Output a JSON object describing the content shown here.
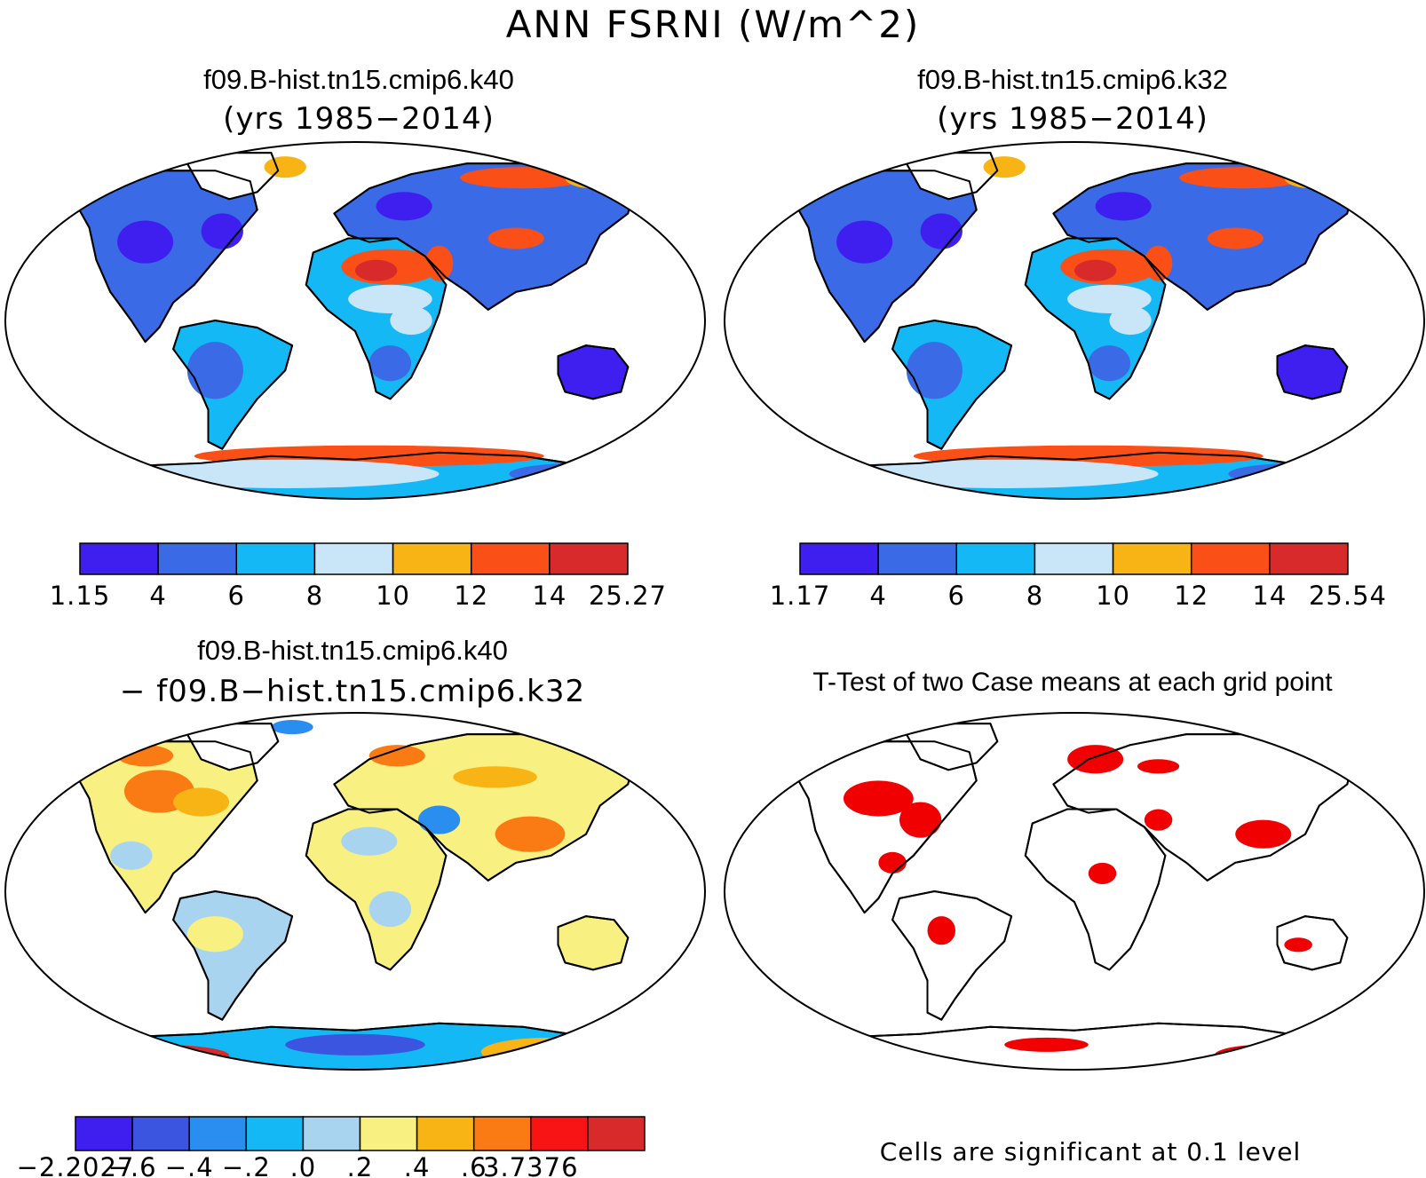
{
  "title": "ANN FSRNI (W/m^2)",
  "panels": [
    {
      "id": "case1",
      "title": "f09.B-hist.tn15.cmip6.k40",
      "subtitle": "(yrs 1985−2014)",
      "colorbar": {
        "colors": [
          "#3f1ff0",
          "#3b6ae6",
          "#14b8f5",
          "#c8e6f8",
          "#f7b414",
          "#fa5018",
          "#d82a2a"
        ],
        "labels": [
          "1.15",
          "4",
          "6",
          "8",
          "10",
          "12",
          "14",
          "25.27"
        ]
      }
    },
    {
      "id": "case2",
      "title": "f09.B-hist.tn15.cmip6.k32",
      "subtitle": "(yrs 1985−2014)",
      "colorbar": {
        "colors": [
          "#3f1ff0",
          "#3b6ae6",
          "#14b8f5",
          "#c8e6f8",
          "#f7b414",
          "#fa5018",
          "#d82a2a"
        ],
        "labels": [
          "1.17",
          "4",
          "6",
          "8",
          "10",
          "12",
          "14",
          "25.54"
        ]
      }
    },
    {
      "id": "diff",
      "title": "f09.B-hist.tn15.cmip6.k40",
      "subtitle": "− f09.B−hist.tn15.cmip6.k32",
      "colorbar": {
        "colors": [
          "#3f1ff0",
          "#3b55e0",
          "#2a8ef0",
          "#14b8f5",
          "#a8d4f0",
          "#f8f080",
          "#f7b414",
          "#fa7a14",
          "#f81414",
          "#d82a2a"
        ],
        "labels": [
          "−2.2027",
          "−.6",
          "−.4",
          "−.2",
          ".0",
          ".2",
          ".4",
          ".6",
          "3.7376"
        ]
      }
    },
    {
      "id": "ttest",
      "title": "T-Test of two Case means at each grid point",
      "note": "Cells are significant at 0.1 level"
    }
  ]
}
